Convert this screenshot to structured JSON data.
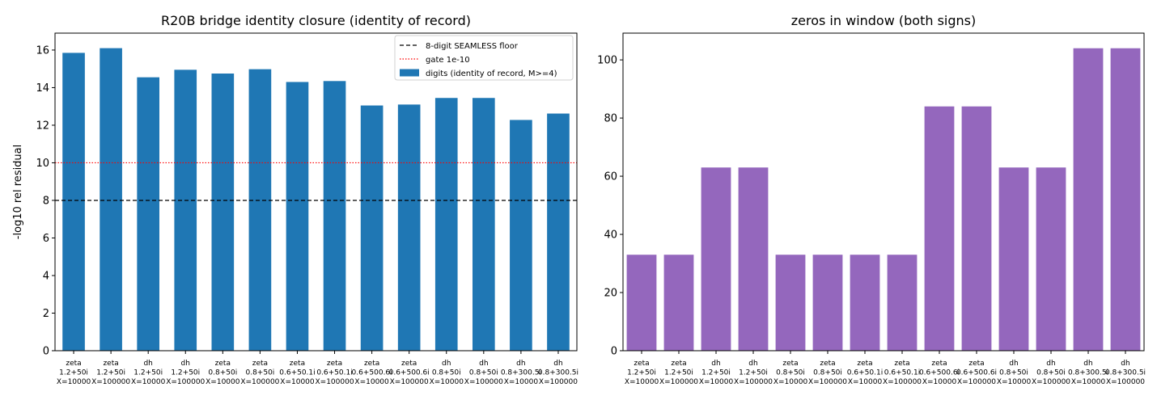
{
  "chart_data": [
    {
      "type": "bar",
      "title": "R20B bridge identity closure (identity of record)",
      "xlabel": "",
      "ylabel": "-log10 rel residual",
      "ylim": [
        0,
        16.9
      ],
      "yticks": [
        0,
        2,
        4,
        6,
        8,
        10,
        12,
        14,
        16
      ],
      "grid": false,
      "legend_position": "top-right",
      "categories": [
        [
          "zeta",
          "1.2+50i",
          "X=10000"
        ],
        [
          "zeta",
          "1.2+50i",
          "X=100000"
        ],
        [
          "dh",
          "1.2+50i",
          "X=10000"
        ],
        [
          "dh",
          "1.2+50i",
          "X=100000"
        ],
        [
          "zeta",
          "0.8+50i",
          "X=10000"
        ],
        [
          "zeta",
          "0.8+50i",
          "X=100000"
        ],
        [
          "zeta",
          "0.6+50.1i",
          "X=10000"
        ],
        [
          "zeta",
          "0.6+50.1i",
          "X=100000"
        ],
        [
          "zeta",
          "0.6+500.6i",
          "X=10000"
        ],
        [
          "zeta",
          "0.6+500.6i",
          "X=100000"
        ],
        [
          "dh",
          "0.8+50i",
          "X=10000"
        ],
        [
          "dh",
          "0.8+50i",
          "X=100000"
        ],
        [
          "dh",
          "0.8+300.5i",
          "X=10000"
        ],
        [
          "dh",
          "0.8+300.5i",
          "X=100000"
        ]
      ],
      "series": [
        {
          "name": "digits (identity of record, M>=4)",
          "color": "#1f77b4",
          "values": [
            15.85,
            16.1,
            14.55,
            14.95,
            14.75,
            14.98,
            14.3,
            14.35,
            13.05,
            13.1,
            13.45,
            13.45,
            12.28,
            12.62
          ]
        }
      ],
      "reference_lines": [
        {
          "name": "8-digit SEAMLESS floor",
          "y": 8,
          "color": "#000000",
          "style": "dashed"
        },
        {
          "name": "gate 1e-10",
          "y": 10,
          "color": "#ff0000",
          "style": "dotted"
        }
      ]
    },
    {
      "type": "bar",
      "title": "zeros in window (both signs)",
      "xlabel": "",
      "ylabel": "",
      "ylim": [
        0,
        109.2
      ],
      "yticks": [
        0,
        20,
        40,
        60,
        80,
        100
      ],
      "grid": false,
      "categories": [
        [
          "zeta",
          "1.2+50i",
          "X=10000"
        ],
        [
          "zeta",
          "1.2+50i",
          "X=100000"
        ],
        [
          "dh",
          "1.2+50i",
          "X=10000"
        ],
        [
          "dh",
          "1.2+50i",
          "X=100000"
        ],
        [
          "zeta",
          "0.8+50i",
          "X=10000"
        ],
        [
          "zeta",
          "0.8+50i",
          "X=100000"
        ],
        [
          "zeta",
          "0.6+50.1i",
          "X=10000"
        ],
        [
          "zeta",
          "0.6+50.1i",
          "X=100000"
        ],
        [
          "zeta",
          "0.6+500.6i",
          "X=10000"
        ],
        [
          "zeta",
          "0.6+500.6i",
          "X=100000"
        ],
        [
          "dh",
          "0.8+50i",
          "X=10000"
        ],
        [
          "dh",
          "0.8+50i",
          "X=100000"
        ],
        [
          "dh",
          "0.8+300.5i",
          "X=10000"
        ],
        [
          "dh",
          "0.8+300.5i",
          "X=100000"
        ]
      ],
      "series": [
        {
          "color": "#9467bd",
          "values": [
            33,
            33,
            63,
            63,
            33,
            33,
            33,
            33,
            84,
            84,
            63,
            63,
            104,
            104
          ]
        }
      ]
    }
  ]
}
